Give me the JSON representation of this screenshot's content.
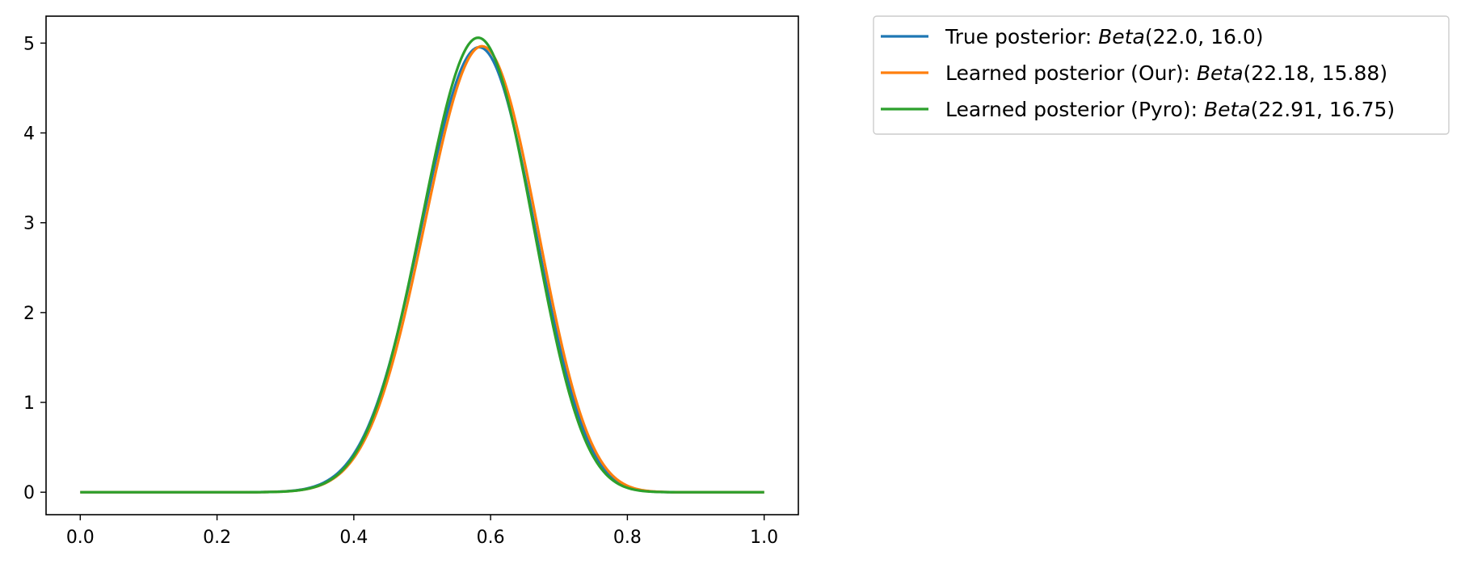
{
  "chart_data": {
    "type": "line",
    "title": "",
    "xlabel": "",
    "ylabel": "",
    "xlim": [
      -0.05,
      1.05
    ],
    "ylim": [
      -0.25,
      5.3
    ],
    "xticks": [
      "0.0",
      "0.2",
      "0.4",
      "0.6",
      "0.8",
      "1.0"
    ],
    "yticks": [
      "0",
      "1",
      "2",
      "3",
      "4",
      "5"
    ],
    "grid": false,
    "legend_position": "outside-upper-right",
    "series": [
      {
        "name": "True posterior: Beta(22.0, 16.0)",
        "legend_plain": "True posterior: ",
        "legend_func": "Beta",
        "legend_args": "(22.0, 16.0)",
        "alpha": 22.0,
        "beta": 16.0,
        "color": "#1f77b4",
        "x": [
          0.0,
          0.1,
          0.2,
          0.3,
          0.35,
          0.4,
          0.45,
          0.5,
          0.55,
          0.58,
          0.6,
          0.65,
          0.7,
          0.75,
          0.8,
          0.85,
          0.9,
          1.0
        ],
        "y": [
          0.0,
          0.0,
          0.0,
          0.03,
          0.12,
          0.37,
          1.12,
          2.55,
          4.27,
          4.95,
          4.86,
          3.45,
          1.62,
          0.5,
          0.08,
          0.01,
          0.0,
          0.0
        ]
      },
      {
        "name": "Learned posterior (Our): Beta(22.18, 15.88)",
        "legend_plain": "Learned posterior (Our): ",
        "legend_func": "Beta",
        "legend_args": "(22.18, 15.88)",
        "alpha": 22.18,
        "beta": 15.88,
        "color": "#ff7f0e",
        "x": [
          0.0,
          0.1,
          0.2,
          0.3,
          0.35,
          0.4,
          0.45,
          0.5,
          0.55,
          0.585,
          0.6,
          0.65,
          0.7,
          0.75,
          0.8,
          0.85,
          0.9,
          1.0
        ],
        "y": [
          0.0,
          0.0,
          0.0,
          0.02,
          0.1,
          0.33,
          1.03,
          2.4,
          4.15,
          4.95,
          4.9,
          3.6,
          1.73,
          0.56,
          0.1,
          0.01,
          0.0,
          0.0
        ]
      },
      {
        "name": "Learned posterior (Pyro): Beta(22.91, 16.75)",
        "legend_plain": "Learned posterior (Pyro): ",
        "legend_func": "Beta",
        "legend_args": "(22.91, 16.75)",
        "alpha": 22.91,
        "beta": 16.75,
        "color": "#2ca02c",
        "x": [
          0.0,
          0.1,
          0.2,
          0.3,
          0.35,
          0.4,
          0.45,
          0.5,
          0.55,
          0.58,
          0.6,
          0.65,
          0.7,
          0.75,
          0.8,
          0.85,
          0.9,
          1.0
        ],
        "y": [
          0.0,
          0.0,
          0.0,
          0.02,
          0.11,
          0.36,
          1.12,
          2.61,
          4.38,
          5.06,
          4.95,
          3.43,
          1.55,
          0.46,
          0.07,
          0.01,
          0.0,
          0.0
        ]
      }
    ]
  }
}
